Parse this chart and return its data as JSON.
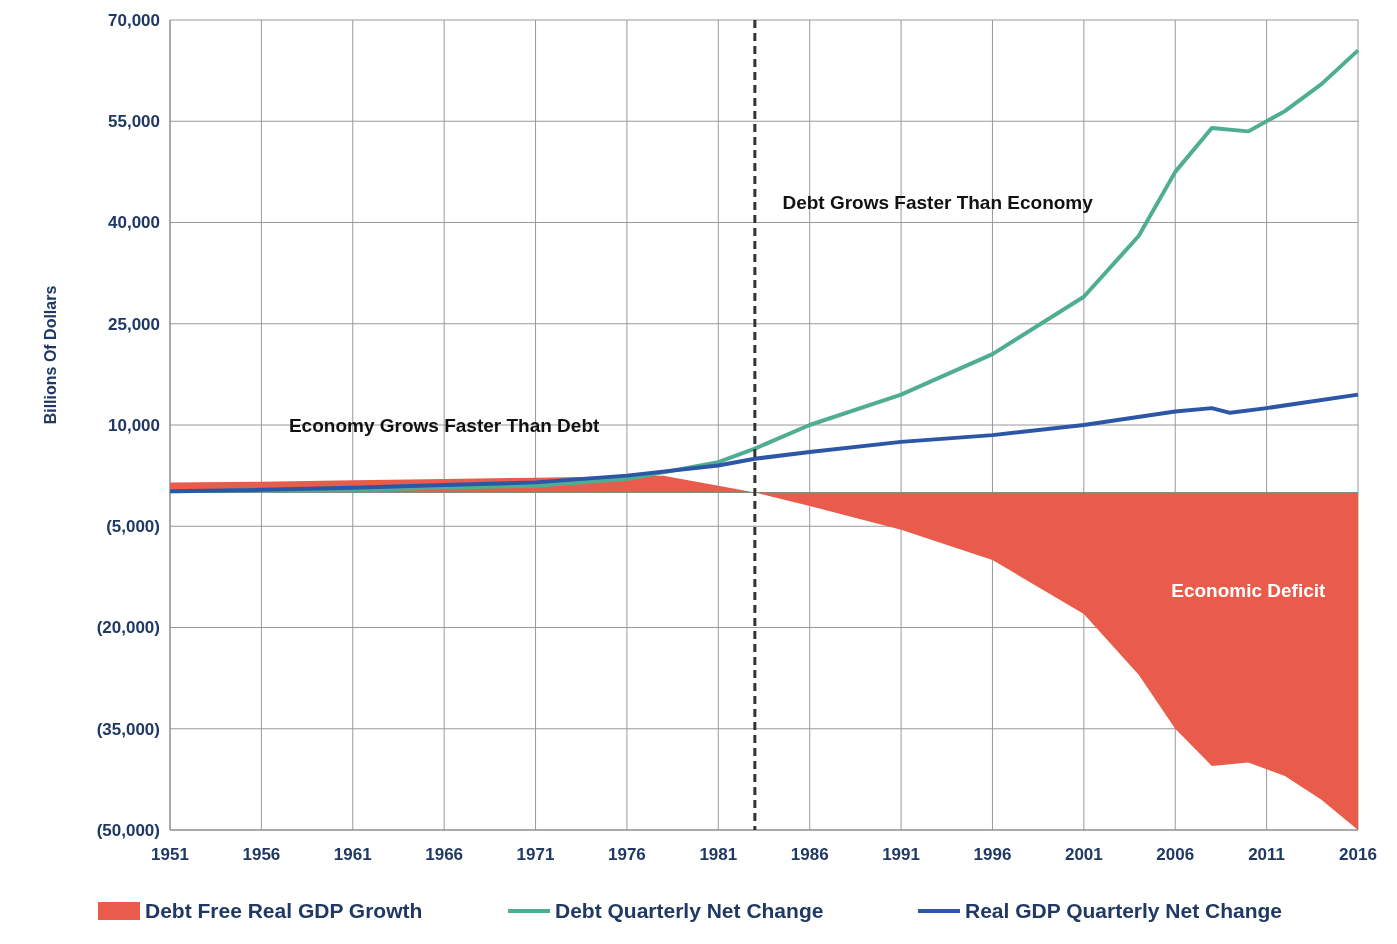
{
  "chart_data": {
    "type": "line",
    "ylabel": "Billions  Of Dollars",
    "xlim": [
      1951,
      2016
    ],
    "xticks": [
      1951,
      1956,
      1961,
      1966,
      1971,
      1976,
      1981,
      1986,
      1991,
      1996,
      2001,
      2006,
      2011,
      2016
    ],
    "ylim": [
      -50000,
      70000
    ],
    "yticks": [
      {
        "value": 70000,
        "label": "70,000"
      },
      {
        "value": 55000,
        "label": "55,000"
      },
      {
        "value": 40000,
        "label": "40,000"
      },
      {
        "value": 25000,
        "label": "25,000"
      },
      {
        "value": 10000,
        "label": "10,000"
      },
      {
        "value": -5000,
        "label": "(5,000)"
      },
      {
        "value": -20000,
        "label": "(20,000)"
      },
      {
        "value": -35000,
        "label": "(35,000)"
      },
      {
        "value": -50000,
        "label": "(50,000)"
      }
    ],
    "grid": true,
    "legend": "bottom",
    "line_style": "solid",
    "ref_lines": [
      {
        "axis": "x",
        "value": 1983,
        "label": null,
        "color": "#333333",
        "line_style": "dashed"
      }
    ],
    "annotations": [
      "Economy Grows Faster Than Debt",
      "Debt Grows Faster Than Economy",
      "Economic Deficit"
    ],
    "series": [
      {
        "name": "Debt Free Real GDP Growth",
        "type": "area",
        "color": "#e95c4b",
        "x": [
          1951,
          1956,
          1961,
          1966,
          1971,
          1976,
          1978,
          1981,
          1983,
          1986,
          1991,
          1996,
          2001,
          2004,
          2006,
          2008,
          2010,
          2012,
          2014,
          2016
        ],
        "values": [
          1500,
          1600,
          1800,
          2000,
          2200,
          2400,
          2500,
          1000,
          0,
          -2000,
          -5500,
          -10000,
          -18000,
          -27000,
          -35000,
          -40500,
          -40000,
          -42000,
          -45500,
          -50000
        ]
      },
      {
        "name": "Debt Quarterly Net Change",
        "color": "#4fae92",
        "x": [
          1951,
          1956,
          1961,
          1966,
          1971,
          1976,
          1981,
          1983,
          1986,
          1991,
          1996,
          2001,
          2004,
          2006,
          2008,
          2010,
          2012,
          2014,
          2016
        ],
        "values": [
          200,
          300,
          400,
          700,
          1000,
          2000,
          4500,
          6500,
          10000,
          14500,
          20500,
          29000,
          38000,
          47500,
          54000,
          53500,
          56500,
          60500,
          65500
        ]
      },
      {
        "name": "Real GDP Quarterly Net Change",
        "color": "#2c57a6",
        "x": [
          1951,
          1956,
          1961,
          1966,
          1971,
          1976,
          1981,
          1983,
          1986,
          1991,
          1996,
          2001,
          2006,
          2008,
          2009,
          2011,
          2016
        ],
        "values": [
          200,
          400,
          700,
          1100,
          1500,
          2500,
          4000,
          5000,
          6000,
          7500,
          8500,
          10000,
          12000,
          12500,
          11800,
          12500,
          14500
        ]
      }
    ]
  }
}
